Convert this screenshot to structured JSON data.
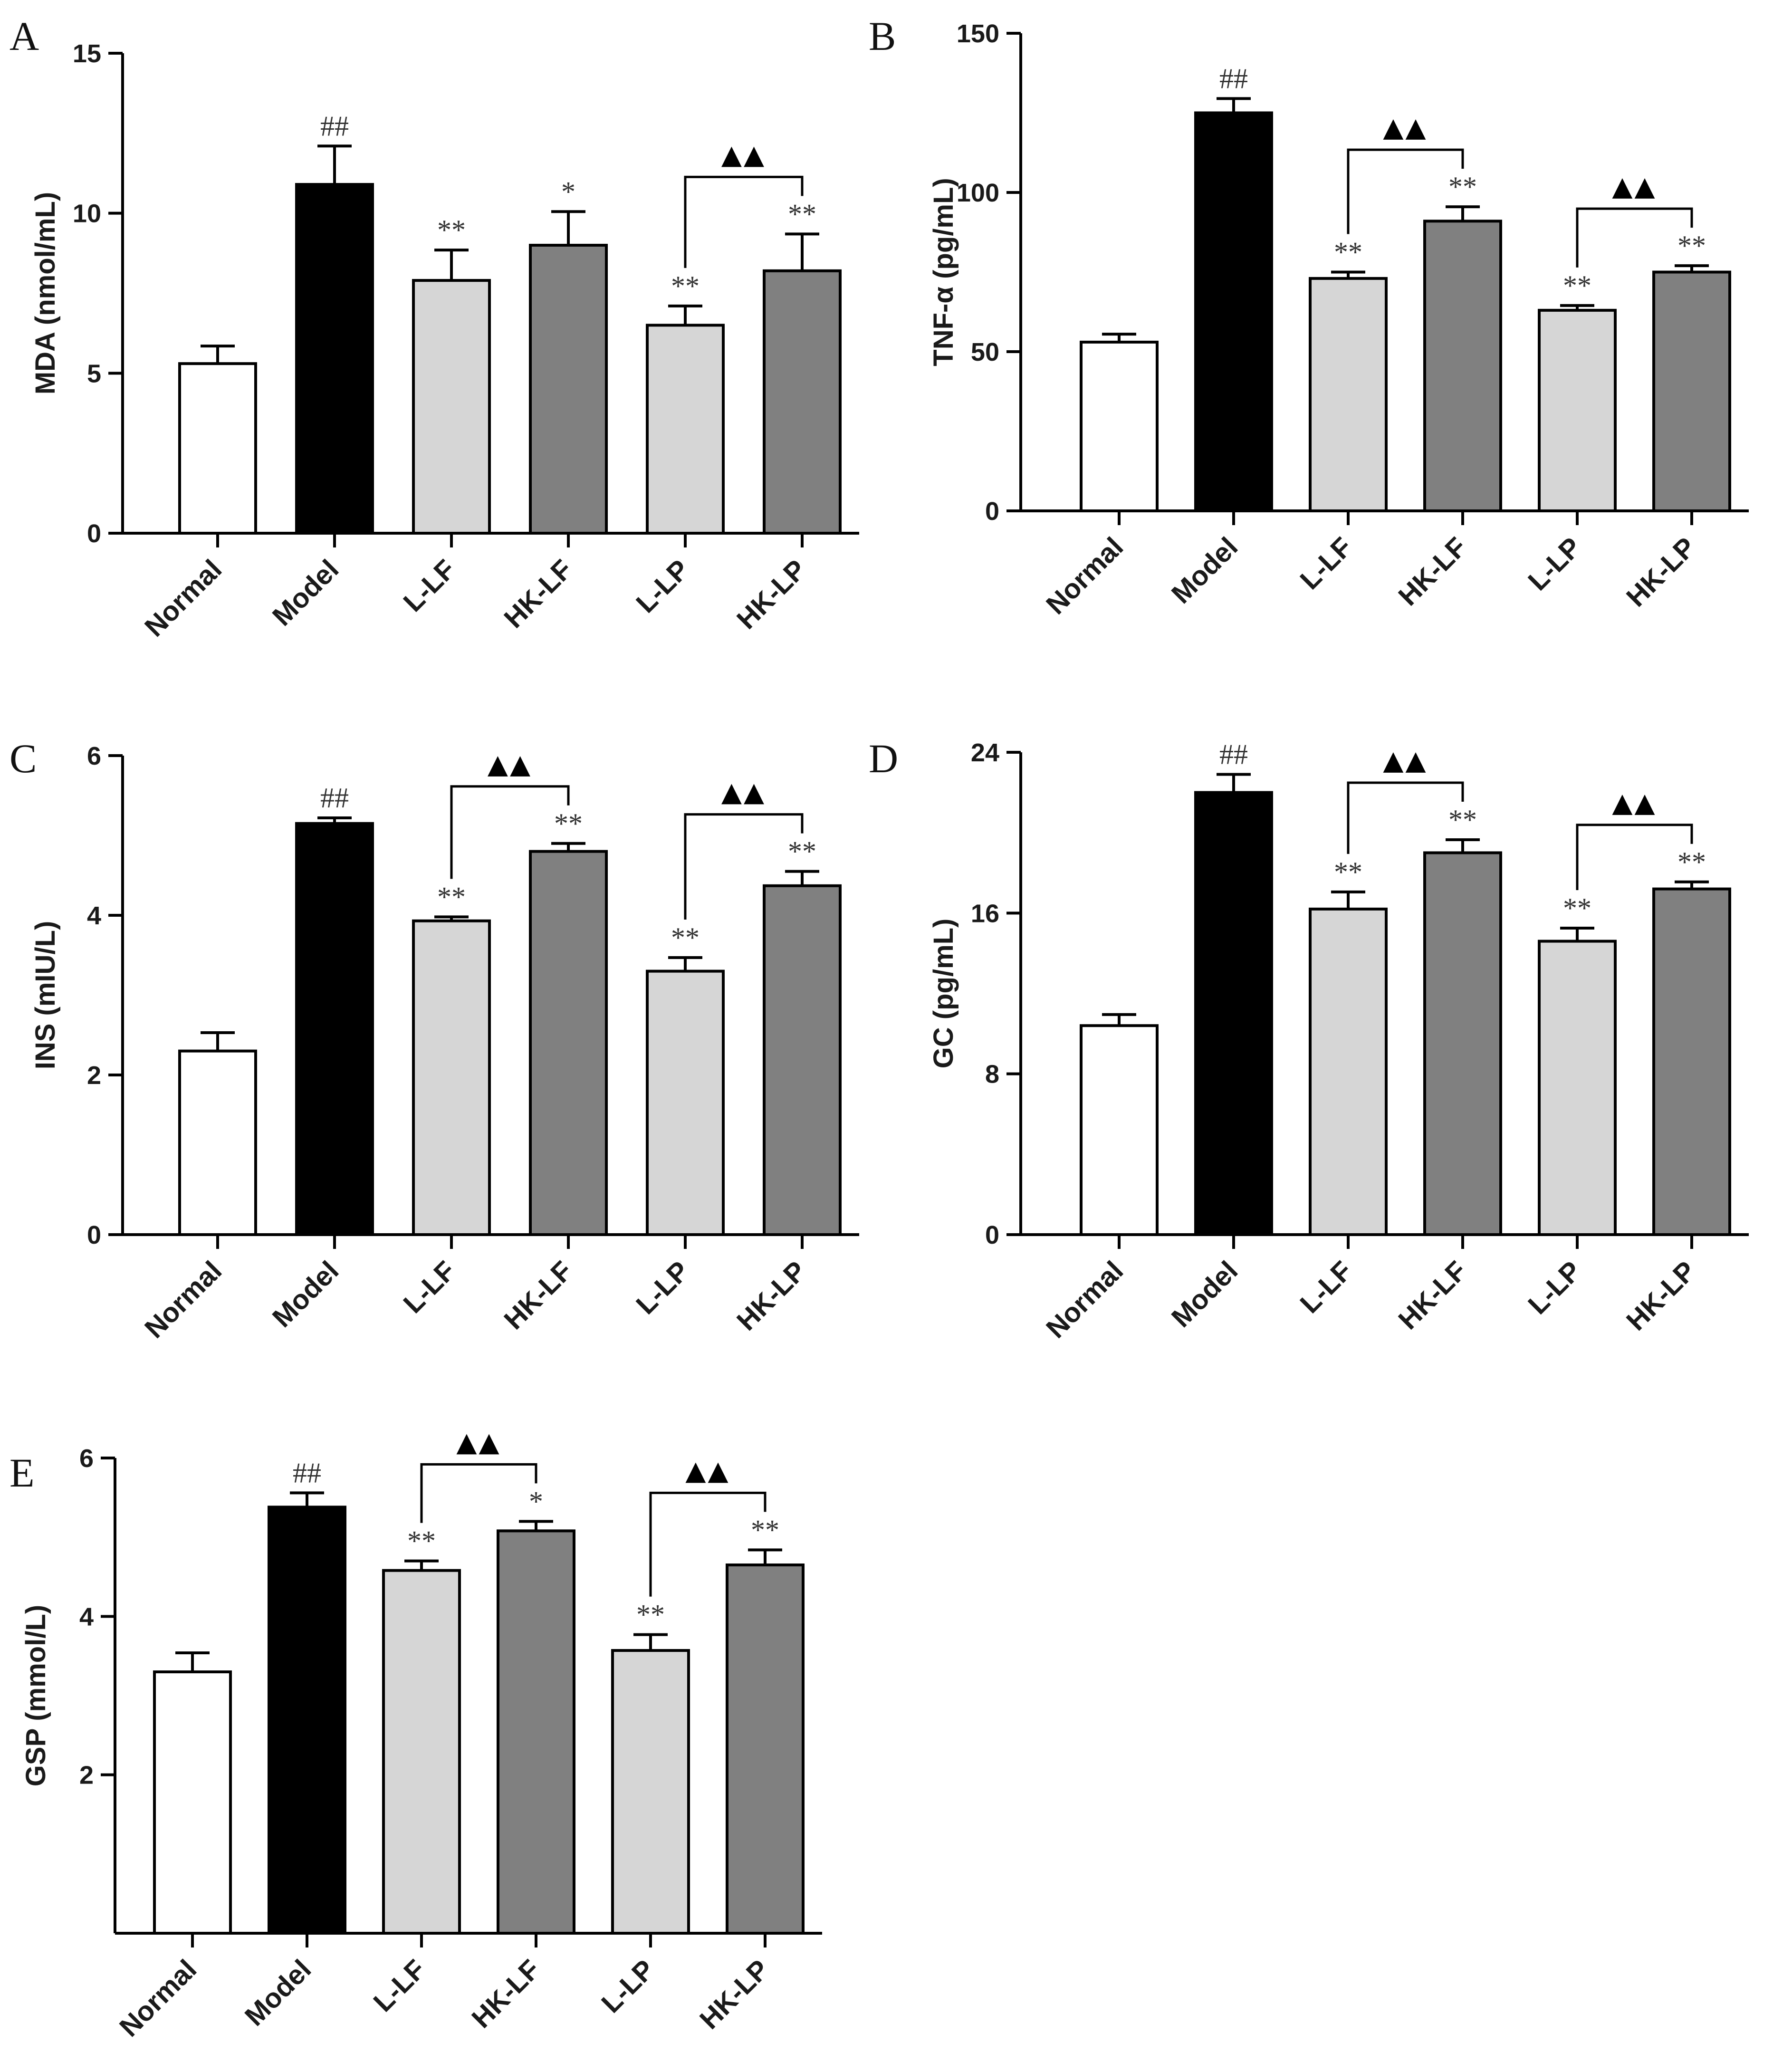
{
  "colors": {
    "Normal": "#ffffff",
    "Model": "#000000",
    "L-LF": "#d6d6d6",
    "HK-LF": "#808080",
    "L-LP": "#d6d6d6",
    "HK-LP": "#808080",
    "stroke": "#000000"
  },
  "chart_data": [
    {
      "id": "A",
      "type": "bar",
      "panel_label": "A",
      "ylabel": "MDA (nmol/mL)",
      "ylim": [
        0,
        15
      ],
      "yticks": [
        0,
        5,
        10,
        15
      ],
      "ytick_labels": [
        "0",
        "5",
        "10",
        "15"
      ],
      "categories": [
        "Normal",
        "Model",
        "L-LF",
        "HK-LF",
        "L-LP",
        "HK-LP"
      ],
      "values": [
        5.3,
        10.9,
        7.9,
        9.0,
        6.5,
        8.2
      ],
      "errors": [
        0.55,
        1.2,
        0.95,
        1.05,
        0.6,
        1.15
      ],
      "annotations": [
        "",
        "##",
        "**",
        "*",
        "**",
        "**"
      ],
      "brackets": [
        {
          "from": 4,
          "to": 5,
          "label": "▲▲"
        }
      ]
    },
    {
      "id": "B",
      "type": "bar",
      "panel_label": "B",
      "ylabel": "TNF-α (pg/mL)",
      "ylim": [
        0,
        150
      ],
      "yticks": [
        0,
        50,
        100,
        150
      ],
      "ytick_labels": [
        "0",
        "50",
        "100",
        "150"
      ],
      "categories": [
        "Normal",
        "Model",
        "L-LF",
        "HK-LF",
        "L-LP",
        "HK-LP"
      ],
      "values": [
        53,
        125,
        73,
        91,
        63,
        75
      ],
      "errors": [
        2.5,
        4.5,
        2.0,
        4.5,
        1.5,
        2.0
      ],
      "annotations": [
        "",
        "##",
        "**",
        "**",
        "**",
        "**"
      ],
      "brackets": [
        {
          "from": 2,
          "to": 3,
          "label": "▲▲"
        },
        {
          "from": 4,
          "to": 5,
          "label": "▲▲"
        }
      ]
    },
    {
      "id": "C",
      "type": "bar",
      "panel_label": "C",
      "ylabel": "INS (mIU/L)",
      "ylim": [
        0,
        6
      ],
      "yticks": [
        0,
        2,
        4,
        6
      ],
      "ytick_labels": [
        "0",
        "2",
        "4",
        "6"
      ],
      "categories": [
        "Normal",
        "Model",
        "L-LF",
        "HK-LF",
        "L-LP",
        "HK-LP"
      ],
      "values": [
        2.3,
        5.15,
        3.93,
        4.8,
        3.3,
        4.37
      ],
      "errors": [
        0.23,
        0.07,
        0.05,
        0.1,
        0.17,
        0.18
      ],
      "annotations": [
        "",
        "##",
        "**",
        "**",
        "**",
        "**"
      ],
      "brackets": [
        {
          "from": 2,
          "to": 3,
          "label": "▲▲"
        },
        {
          "from": 4,
          "to": 5,
          "label": "▲▲"
        }
      ]
    },
    {
      "id": "D",
      "type": "bar",
      "panel_label": "D",
      "ylabel": "GC (pg/mL)",
      "ylim": [
        0,
        24
      ],
      "yticks": [
        0,
        8,
        16,
        24
      ],
      "ytick_labels": [
        "0",
        "8",
        "16",
        "24"
      ],
      "categories": [
        "Normal",
        "Model",
        "L-LF",
        "HK-LF",
        "L-LP",
        "HK-LP"
      ],
      "values": [
        10.4,
        22.0,
        16.2,
        19.0,
        14.6,
        17.2
      ],
      "errors": [
        0.55,
        0.9,
        0.85,
        0.65,
        0.65,
        0.35
      ],
      "annotations": [
        "",
        "##",
        "**",
        "**",
        "**",
        "**"
      ],
      "brackets": [
        {
          "from": 2,
          "to": 3,
          "label": "▲▲"
        },
        {
          "from": 4,
          "to": 5,
          "label": "▲▲"
        }
      ]
    },
    {
      "id": "E",
      "type": "bar",
      "panel_label": "E",
      "ylabel": "GSP (mmol/L)",
      "ylim": [
        0,
        6
      ],
      "yticks": [
        2,
        4,
        6
      ],
      "ytick_labels": [
        "2",
        "4",
        "6"
      ],
      "categories": [
        "Normal",
        "Model",
        "L-LF",
        "HK-LF",
        "L-LP",
        "HK-LP"
      ],
      "values": [
        3.3,
        5.38,
        4.58,
        5.08,
        3.57,
        4.65
      ],
      "errors": [
        0.24,
        0.18,
        0.12,
        0.12,
        0.2,
        0.19
      ],
      "annotations": [
        "",
        "##",
        "**",
        "*",
        "**",
        "**"
      ],
      "brackets": [
        {
          "from": 2,
          "to": 3,
          "label": "▲▲"
        },
        {
          "from": 4,
          "to": 5,
          "label": "▲▲"
        }
      ]
    }
  ]
}
